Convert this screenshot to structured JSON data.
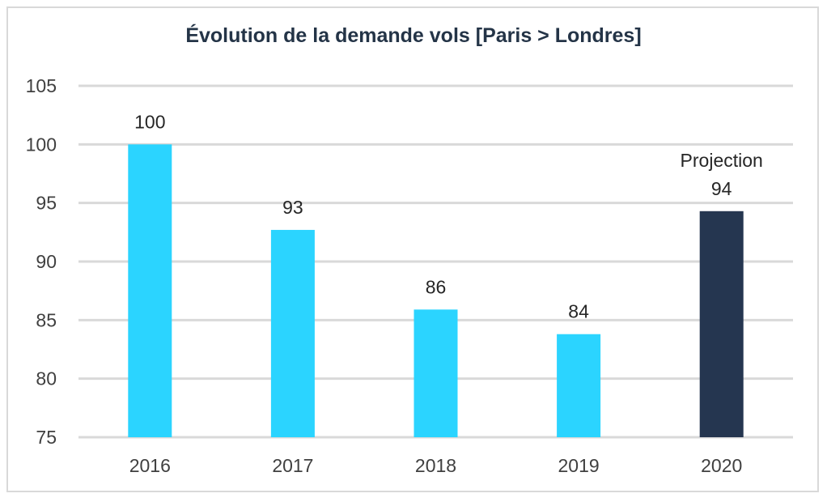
{
  "chart_data": {
    "type": "bar",
    "title": "Évolution de la demande vols [Paris > Londres]",
    "xlabel": "",
    "ylabel": "",
    "categories": [
      "2016",
      "2017",
      "2018",
      "2019",
      "2020"
    ],
    "values": [
      100,
      92.7,
      85.9,
      83.8,
      94.3
    ],
    "data_labels": [
      "100",
      "93",
      "86",
      "84",
      "94"
    ],
    "annotations": [
      {
        "category": "2020",
        "text": "Projection"
      }
    ],
    "ylim": [
      75,
      105
    ],
    "yticks": [
      75,
      80,
      85,
      90,
      95,
      100,
      105
    ],
    "grid": true,
    "legend": "none",
    "colors": {
      "actual": "#2bd4ff",
      "projection": "#253650",
      "grid": "#d9d9d9",
      "title": "#243447"
    },
    "projection_categories": [
      "2020"
    ]
  }
}
